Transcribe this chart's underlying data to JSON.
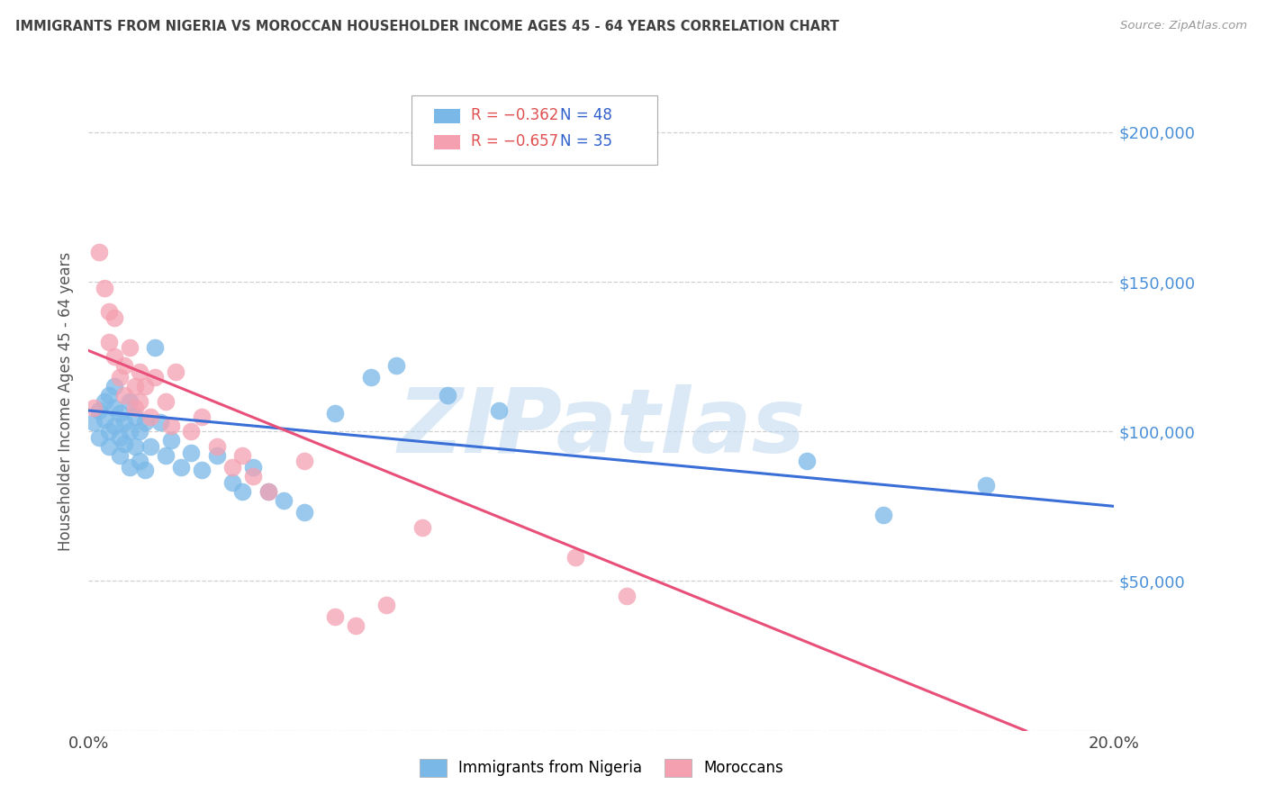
{
  "title": "IMMIGRANTS FROM NIGERIA VS MOROCCAN HOUSEHOLDER INCOME AGES 45 - 64 YEARS CORRELATION CHART",
  "source": "Source: ZipAtlas.com",
  "ylabel": "Householder Income Ages 45 - 64 years",
  "xlim": [
    0.0,
    0.2
  ],
  "ylim": [
    0,
    220000
  ],
  "yticks": [
    0,
    50000,
    100000,
    150000,
    200000
  ],
  "ytick_labels": [
    "",
    "$50,000",
    "$100,000",
    "$150,000",
    "$200,000"
  ],
  "xticks": [
    0.0,
    0.05,
    0.1,
    0.15,
    0.2
  ],
  "xtick_labels": [
    "0.0%",
    "",
    "",
    "",
    "20.0%"
  ],
  "watermark": "ZIPatlas",
  "legend_blue_r": "R = −0.362",
  "legend_blue_n": "N = 48",
  "legend_pink_r": "R = −0.657",
  "legend_pink_n": "N = 35",
  "blue_scatter": "#7ab8e8",
  "pink_scatter": "#f4a0b0",
  "line_blue": "#3a6fd8",
  "line_pink": "#e8507a",
  "axis_label_color": "#4a90d9",
  "grid_color": "#d0d0d0",
  "title_color": "#404040",
  "nigeria_x": [
    0.001,
    0.002,
    0.002,
    0.003,
    0.003,
    0.004,
    0.004,
    0.004,
    0.005,
    0.005,
    0.005,
    0.006,
    0.006,
    0.006,
    0.007,
    0.007,
    0.008,
    0.008,
    0.008,
    0.009,
    0.009,
    0.01,
    0.01,
    0.011,
    0.011,
    0.012,
    0.013,
    0.014,
    0.015,
    0.016,
    0.018,
    0.02,
    0.022,
    0.025,
    0.028,
    0.03,
    0.032,
    0.035,
    0.038,
    0.042,
    0.048,
    0.055,
    0.06,
    0.07,
    0.08,
    0.14,
    0.155,
    0.175
  ],
  "nigeria_y": [
    103000,
    107000,
    98000,
    110000,
    104000,
    112000,
    100000,
    95000,
    108000,
    102000,
    115000,
    106000,
    98000,
    92000,
    103000,
    96000,
    110000,
    100000,
    88000,
    105000,
    95000,
    100000,
    90000,
    103000,
    87000,
    95000,
    128000,
    103000,
    92000,
    97000,
    88000,
    93000,
    87000,
    92000,
    83000,
    80000,
    88000,
    80000,
    77000,
    73000,
    106000,
    118000,
    122000,
    112000,
    107000,
    90000,
    72000,
    82000
  ],
  "morocco_x": [
    0.001,
    0.002,
    0.003,
    0.004,
    0.004,
    0.005,
    0.005,
    0.006,
    0.007,
    0.007,
    0.008,
    0.009,
    0.009,
    0.01,
    0.01,
    0.011,
    0.012,
    0.013,
    0.015,
    0.016,
    0.017,
    0.02,
    0.022,
    0.025,
    0.028,
    0.03,
    0.032,
    0.035,
    0.042,
    0.048,
    0.052,
    0.058,
    0.065,
    0.095,
    0.105
  ],
  "morocco_y": [
    108000,
    160000,
    148000,
    140000,
    130000,
    138000,
    125000,
    118000,
    122000,
    112000,
    128000,
    115000,
    108000,
    120000,
    110000,
    115000,
    105000,
    118000,
    110000,
    102000,
    120000,
    100000,
    105000,
    95000,
    88000,
    92000,
    85000,
    80000,
    90000,
    38000,
    35000,
    42000,
    68000,
    58000,
    45000
  ]
}
